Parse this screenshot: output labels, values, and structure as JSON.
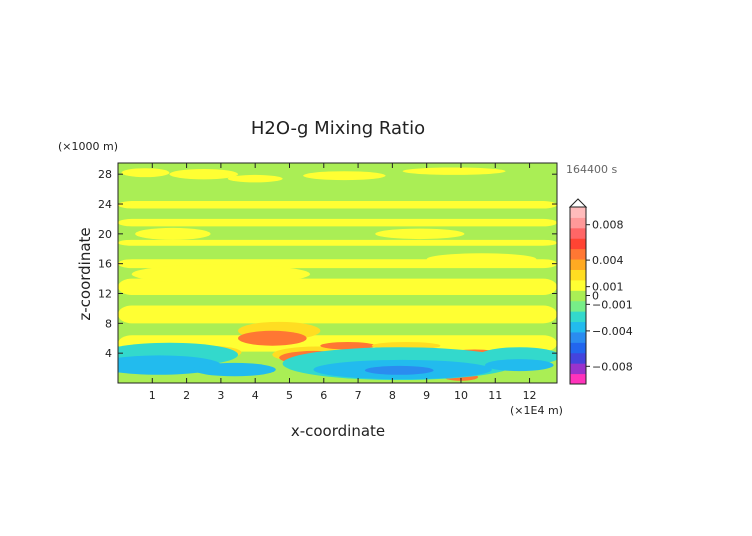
{
  "chart_data": {
    "type": "heatmap",
    "title": "H2O-g Mixing Ratio",
    "time_label": "164400 s",
    "xlabel": "x-coordinate",
    "ylabel": "z-coordinate",
    "x_unit_label": "(×1E4 m)",
    "y_unit_label": "(×1000 m)",
    "xlim": [
      0,
      12.8
    ],
    "ylim": [
      0,
      29.5
    ],
    "xticks": [
      1,
      2,
      3,
      4,
      5,
      6,
      7,
      8,
      9,
      10,
      11,
      12
    ],
    "yticks": [
      4,
      8,
      12,
      16,
      20,
      24,
      28
    ],
    "colorbar": {
      "ticks": [
        {
          "value": 0.008,
          "label": "0.008"
        },
        {
          "value": 0.004,
          "label": "0.004"
        },
        {
          "value": 0.001,
          "label": "0.001"
        },
        {
          "value": 0,
          "label": "0"
        },
        {
          "value": -0.001,
          "label": "−0.001"
        },
        {
          "value": -0.004,
          "label": "−0.004"
        },
        {
          "value": -0.008,
          "label": "−0.008"
        }
      ],
      "colors": [
        "#ff33bb",
        "#9933cc",
        "#4444dd",
        "#2266ee",
        "#2a8cf0",
        "#22bbee",
        "#33d9cc",
        "#77ee88",
        "#aaee55",
        "#ffff33",
        "#ffdd22",
        "#ffaa22",
        "#ff7733",
        "#ff4433",
        "#ff6666",
        "#ff9999",
        "#ffbbbb"
      ]
    },
    "field": {
      "background_value": 0,
      "bands": [
        {
          "x0": 0,
          "x1": 12.8,
          "z0": 23.4,
          "z1": 24.4,
          "value": 0.0003
        },
        {
          "x0": 0,
          "x1": 12.8,
          "z0": 21.0,
          "z1": 22.0,
          "value": 0.0003
        },
        {
          "x0": 0,
          "x1": 12.8,
          "z0": 18.4,
          "z1": 19.2,
          "value": 0.0003
        },
        {
          "x0": 0,
          "x1": 12.8,
          "z0": 15.4,
          "z1": 16.6,
          "value": 0.0003
        },
        {
          "x0": 0,
          "x1": 12.8,
          "z0": 11.8,
          "z1": 14.0,
          "value": 0.0003
        },
        {
          "x0": 0,
          "x1": 12.8,
          "z0": 8.0,
          "z1": 10.4,
          "value": 0.0003
        },
        {
          "x0": 0,
          "x1": 12.8,
          "z0": 4.2,
          "z1": 6.4,
          "value": 0.0003
        }
      ],
      "blobs": [
        {
          "x": 0.8,
          "z": 28.2,
          "rx": 0.7,
          "rz": 0.6,
          "value": 0.0003
        },
        {
          "x": 2.5,
          "z": 28.0,
          "rx": 1.0,
          "rz": 0.7,
          "value": 0.0003
        },
        {
          "x": 4.0,
          "z": 27.4,
          "rx": 0.8,
          "rz": 0.5,
          "value": 0.0003
        },
        {
          "x": 6.6,
          "z": 27.8,
          "rx": 1.2,
          "rz": 0.6,
          "value": 0.0003
        },
        {
          "x": 9.8,
          "z": 28.4,
          "rx": 1.5,
          "rz": 0.5,
          "value": 0.0003
        },
        {
          "x": 3.0,
          "z": 14.6,
          "rx": 2.6,
          "rz": 1.3,
          "value": 0.0003
        },
        {
          "x": 10.6,
          "z": 16.6,
          "rx": 1.6,
          "rz": 0.8,
          "value": 0.0003
        },
        {
          "x": 1.6,
          "z": 20.0,
          "rx": 1.1,
          "rz": 0.8,
          "value": 0.0003
        },
        {
          "x": 8.8,
          "z": 20.0,
          "rx": 1.3,
          "rz": 0.7,
          "value": 0.0003
        },
        {
          "x": 4.7,
          "z": 7.0,
          "rx": 1.2,
          "rz": 1.2,
          "value": 0.0006
        },
        {
          "x": 4.5,
          "z": 6.0,
          "rx": 1.0,
          "rz": 1.0,
          "value": 0.003
        },
        {
          "x": 2.6,
          "z": 4.1,
          "rx": 1.0,
          "rz": 0.9,
          "value": 0.0006
        },
        {
          "x": 2.6,
          "z": 3.9,
          "rx": 0.8,
          "rz": 0.7,
          "value": 0.003
        },
        {
          "x": 5.8,
          "z": 3.8,
          "rx": 1.3,
          "rz": 1.1,
          "value": 0.0006
        },
        {
          "x": 5.7,
          "z": 3.4,
          "rx": 1.0,
          "rz": 0.9,
          "value": 0.003
        },
        {
          "x": 6.7,
          "z": 5.0,
          "rx": 0.8,
          "rz": 0.5,
          "value": 0.003
        },
        {
          "x": 8.4,
          "z": 5.0,
          "rx": 1.0,
          "rz": 0.5,
          "value": 0.0006
        },
        {
          "x": 10.4,
          "z": 4.0,
          "rx": 0.7,
          "rz": 0.5,
          "value": 0.003
        },
        {
          "x": 10.0,
          "z": 0.8,
          "rx": 0.5,
          "rz": 0.5,
          "value": 0.003
        },
        {
          "x": 1.5,
          "z": 3.8,
          "rx": 2.0,
          "rz": 1.6,
          "value": -0.0008
        },
        {
          "x": 1.2,
          "z": 2.4,
          "rx": 1.8,
          "rz": 1.3,
          "value": -0.0015
        },
        {
          "x": 3.4,
          "z": 1.8,
          "rx": 1.2,
          "rz": 0.9,
          "value": -0.0015
        },
        {
          "x": 8.2,
          "z": 2.6,
          "rx": 3.4,
          "rz": 2.2,
          "value": -0.0008
        },
        {
          "x": 8.3,
          "z": 1.8,
          "rx": 2.6,
          "rz": 1.3,
          "value": -0.0015
        },
        {
          "x": 8.2,
          "z": 1.7,
          "rx": 1.0,
          "rz": 0.6,
          "value": -0.003
        },
        {
          "x": 11.7,
          "z": 3.6,
          "rx": 1.2,
          "rz": 1.2,
          "value": -0.0008
        },
        {
          "x": 11.7,
          "z": 2.4,
          "rx": 1.0,
          "rz": 0.8,
          "value": -0.0015
        }
      ]
    }
  }
}
